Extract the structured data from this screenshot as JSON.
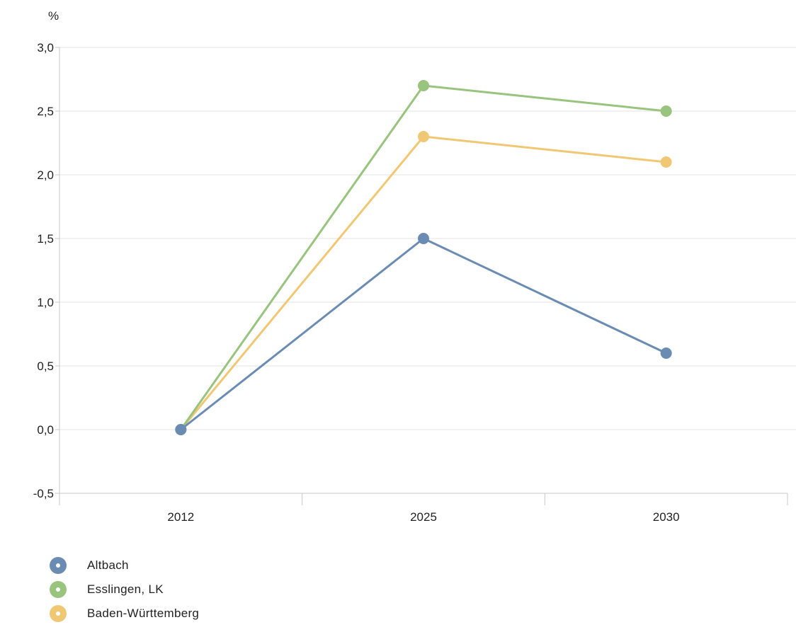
{
  "chart_data": {
    "type": "line",
    "unit_label": "%",
    "x": [
      "2012",
      "2025",
      "2030"
    ],
    "y_ticks": [
      "3,0",
      "2,5",
      "2,0",
      "1,5",
      "1,0",
      "0,5",
      "0,0",
      "-0,5"
    ],
    "ylim": [
      -0.5,
      3.0
    ],
    "grid": true,
    "legend_position": "bottom-left",
    "series": [
      {
        "name": "Altbach",
        "color": "#6b8cb2",
        "values": [
          0.0,
          1.5,
          0.6
        ]
      },
      {
        "name": "Esslingen, LK",
        "color": "#98c47e",
        "values": [
          0.0,
          2.7,
          2.5
        ]
      },
      {
        "name": "Baden-Württemberg",
        "color": "#f0c873",
        "values": [
          0.0,
          2.3,
          2.1
        ]
      }
    ]
  }
}
